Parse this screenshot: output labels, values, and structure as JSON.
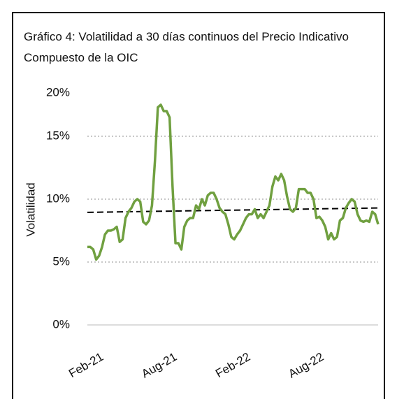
{
  "chart_data": {
    "type": "line",
    "title": "Gráfico 4: Volatilidad a 30 días continuos del Precio Indicativo Compuesto de la OIC",
    "y_label": "Volatilidad",
    "categories": [
      "Feb-21",
      null,
      null,
      null,
      null,
      null,
      null,
      null,
      null,
      null,
      null,
      null,
      null,
      null,
      null,
      null,
      null,
      null,
      null,
      null,
      null,
      null,
      null,
      null,
      null,
      "Aug-21",
      null,
      null,
      null,
      null,
      null,
      null,
      null,
      null,
      null,
      null,
      null,
      null,
      null,
      null,
      null,
      null,
      null,
      null,
      null,
      null,
      null,
      null,
      null,
      null,
      "Feb-22",
      null,
      null,
      null,
      null,
      null,
      null,
      null,
      null,
      null,
      null,
      null,
      null,
      null,
      null,
      null,
      null,
      null,
      null,
      null,
      null,
      null,
      null,
      null,
      null,
      "Aug-22",
      null,
      null,
      null,
      null,
      null,
      null,
      null,
      null,
      null,
      null,
      null,
      null,
      null,
      null,
      null,
      null,
      null,
      null,
      null,
      null,
      null,
      null,
      null,
      null
    ],
    "series": [
      {
        "color": "#70a040",
        "values": [
          6.2,
          6.2,
          6.0,
          5.2,
          5.5,
          6.2,
          7.2,
          7.5,
          7.5,
          7.6,
          7.8,
          6.6,
          6.8,
          8.5,
          9.0,
          9.3,
          9.8,
          10.0,
          9.8,
          8.2,
          8.0,
          8.3,
          9.5,
          13.0,
          17.3,
          17.5,
          17.0,
          17.0,
          16.5,
          11.0,
          6.5,
          6.5,
          6.0,
          7.8,
          8.3,
          8.5,
          8.5,
          9.5,
          9.2,
          10.0,
          9.5,
          10.3,
          10.5,
          10.5,
          10.0,
          9.3,
          9.0,
          8.8,
          8.0,
          7.0,
          6.8,
          7.2,
          7.5,
          8.0,
          8.5,
          8.8,
          8.8,
          9.2,
          8.5,
          8.8,
          8.5,
          9.0,
          9.5,
          11.0,
          11.8,
          11.5,
          12.0,
          11.5,
          10.2,
          9.2,
          9.0,
          9.3,
          10.8,
          10.8,
          10.8,
          10.5,
          10.5,
          10.0,
          8.5,
          8.6,
          8.3,
          7.8,
          6.8,
          7.3,
          6.8,
          7.0,
          8.3,
          8.5,
          9.3,
          9.7,
          10.0,
          9.8,
          8.8,
          8.3,
          8.2,
          8.3,
          8.2,
          9.0,
          8.8,
          8.0
        ]
      }
    ],
    "trend_line": {
      "color": "#000000",
      "values": [
        8.95,
        9.3
      ]
    },
    "ylim": [
      0,
      20
    ],
    "yticks": [
      {
        "value": 0,
        "label": "0%"
      },
      {
        "value": 5,
        "label": "5%"
      },
      {
        "value": 10,
        "label": "10%"
      },
      {
        "value": 15,
        "label": "15%"
      },
      {
        "value": 20,
        "label": "20%"
      }
    ],
    "grid": true
  }
}
